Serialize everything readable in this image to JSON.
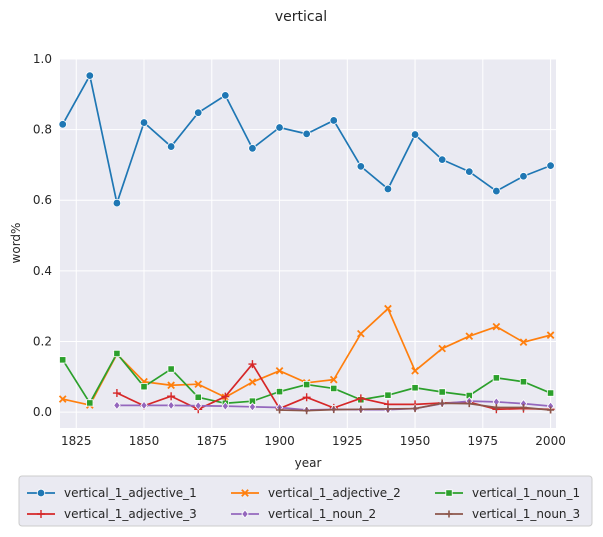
{
  "chart_data": {
    "type": "line",
    "title": "vertical",
    "xlabel": "year",
    "ylabel": "word%",
    "xlim": [
      1819,
      2002
    ],
    "ylim": [
      -0.045,
      1.0
    ],
    "xticks": [
      1825,
      1850,
      1875,
      1900,
      1925,
      1950,
      1975,
      2000
    ],
    "yticks": [
      0.0,
      0.2,
      0.4,
      0.6,
      0.8,
      1.0
    ],
    "xtick_labels": [
      "1825",
      "1850",
      "1875",
      "1900",
      "1925",
      "1950",
      "1975",
      "2000"
    ],
    "ytick_labels": [
      "0.0",
      "0.2",
      "0.4",
      "0.6",
      "0.8",
      "1.0"
    ],
    "grid": true,
    "legend_position": "bottom",
    "series": [
      {
        "name": "vertical_1_adjective_1",
        "color": "#1f77b4",
        "marker": "circle",
        "x": [
          1820,
          1830,
          1840,
          1850,
          1860,
          1870,
          1880,
          1890,
          1900,
          1910,
          1920,
          1930,
          1940,
          1950,
          1960,
          1970,
          1980,
          1990,
          2000
        ],
        "y": [
          0.815,
          0.953,
          0.592,
          0.82,
          0.752,
          0.848,
          0.897,
          0.747,
          0.806,
          0.788,
          0.826,
          0.696,
          0.632,
          0.786,
          0.715,
          0.681,
          0.626,
          0.668,
          0.698
        ]
      },
      {
        "name": "vertical_1_adjective_2",
        "color": "#ff7f0e",
        "marker": "x",
        "x": [
          1820,
          1830,
          1840,
          1850,
          1860,
          1870,
          1880,
          1890,
          1900,
          1910,
          1920,
          1930,
          1940,
          1950,
          1960,
          1970,
          1980,
          1990,
          2000
        ],
        "y": [
          0.037,
          0.02,
          0.164,
          0.086,
          0.076,
          0.079,
          0.042,
          0.085,
          0.117,
          0.083,
          0.092,
          0.222,
          0.293,
          0.117,
          0.18,
          0.215,
          0.242,
          0.198,
          0.218
        ]
      },
      {
        "name": "vertical_1_noun_1",
        "color": "#2ca02c",
        "marker": "square",
        "x": [
          1820,
          1830,
          1840,
          1850,
          1860,
          1870,
          1880,
          1890,
          1900,
          1910,
          1920,
          1930,
          1940,
          1950,
          1960,
          1970,
          1980,
          1990,
          2000
        ],
        "y": [
          0.148,
          0.026,
          0.166,
          0.072,
          0.122,
          0.042,
          0.025,
          0.031,
          0.058,
          0.078,
          0.067,
          0.035,
          0.048,
          0.069,
          0.057,
          0.047,
          0.097,
          0.086,
          0.054
        ]
      },
      {
        "name": "vertical_1_adjective_3",
        "color": "#d62728",
        "marker": "plus",
        "x": [
          1840,
          1850,
          1860,
          1870,
          1880,
          1890,
          1900,
          1910,
          1920,
          1930,
          1940,
          1950,
          1960,
          1970,
          1980,
          1990,
          2000
        ],
        "y": [
          0.054,
          0.018,
          0.045,
          0.008,
          0.044,
          0.136,
          0.01,
          0.042,
          0.012,
          0.039,
          0.022,
          0.022,
          0.026,
          0.028,
          0.008,
          0.01,
          0.008
        ]
      },
      {
        "name": "vertical_1_noun_2",
        "color": "#9467bd",
        "marker": "diamond",
        "x": [
          1840,
          1850,
          1860,
          1870,
          1880,
          1890,
          1900,
          1910,
          1920,
          1930,
          1940,
          1950,
          1960,
          1970,
          1980,
          1990,
          2000
        ],
        "y": [
          0.019,
          0.019,
          0.019,
          0.018,
          0.017,
          0.015,
          0.013,
          0.006,
          0.008,
          0.007,
          0.007,
          0.01,
          0.024,
          0.031,
          0.029,
          0.024,
          0.017
        ]
      },
      {
        "name": "vertical_1_noun_3",
        "color": "#8c564b",
        "marker": "cross",
        "x": [
          1900,
          1910,
          1920,
          1930,
          1940,
          1950,
          1960,
          1970,
          1980,
          1990,
          2000
        ],
        "y": [
          0.006,
          0.004,
          0.007,
          0.008,
          0.009,
          0.01,
          0.025,
          0.024,
          0.013,
          0.013,
          0.006
        ]
      }
    ]
  }
}
